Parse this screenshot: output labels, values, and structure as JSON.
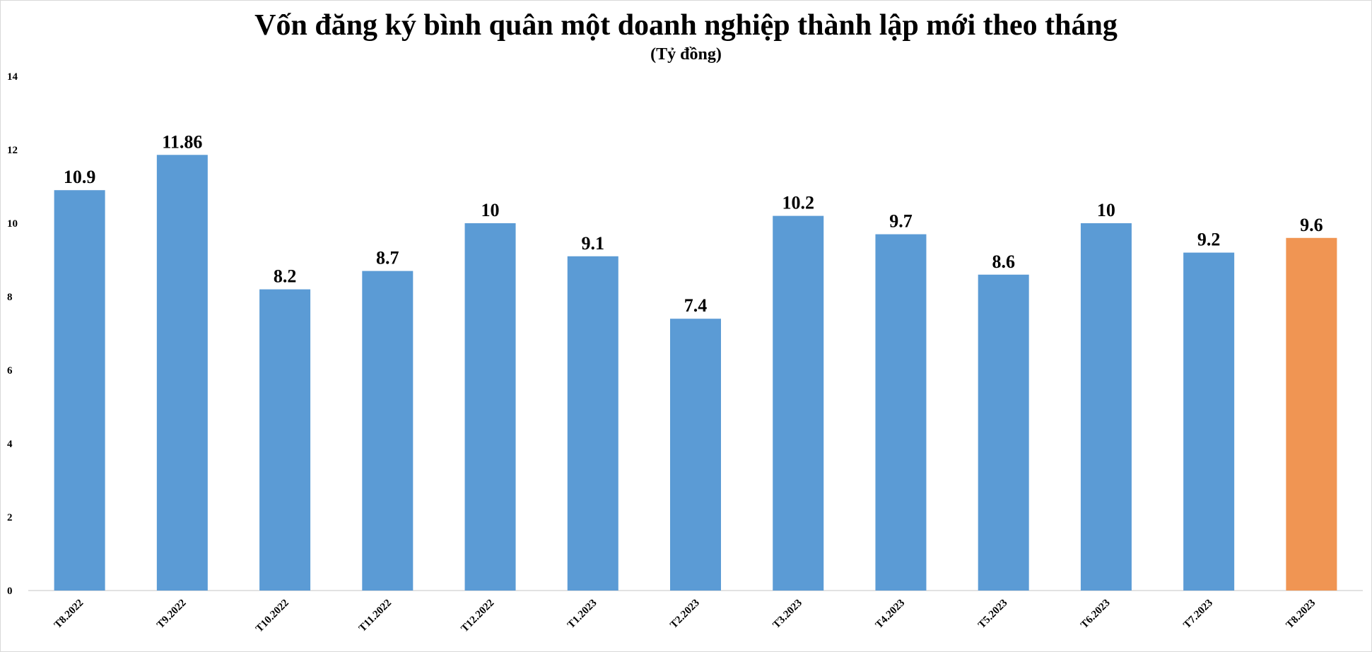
{
  "chart_data": {
    "type": "bar",
    "title": "Vốn đăng ký bình quân một doanh nghiệp thành lập mới theo tháng",
    "subtitle": "(Tỷ đồng)",
    "categories": [
      "T8.2022",
      "T9.2022",
      "T10.2022",
      "T11.2022",
      "T12.2022",
      "T1.2023",
      "T2.2023",
      "T3.2023",
      "T4.2023",
      "T5.2023",
      "T6.2023",
      "T7.2023",
      "T8.2023"
    ],
    "values": [
      10.9,
      11.86,
      8.2,
      8.7,
      10,
      9.1,
      7.4,
      10.2,
      9.7,
      8.6,
      10,
      9.2,
      9.6
    ],
    "data_labels": [
      "10.9",
      "11.86",
      "8.2",
      "8.7",
      "10",
      "9.1",
      "7.4",
      "10.2",
      "9.7",
      "8.6",
      "10",
      "9.2",
      "9.6"
    ],
    "ylim": [
      0,
      14
    ],
    "yticks": [
      "0",
      "2",
      "4",
      "6",
      "8",
      "10",
      "12",
      "14"
    ],
    "xlabel": "",
    "ylabel": "",
    "grid": false,
    "legend": "none",
    "colors": {
      "bar": "#5b9bd5",
      "highlight": "#f09553",
      "axis": "#d9d9d9",
      "text": "#000000"
    },
    "highlight_index": 12
  }
}
